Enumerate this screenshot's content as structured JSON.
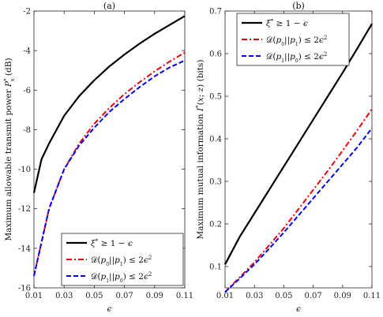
{
  "chart_data": [
    {
      "type": "line",
      "title": "(a)",
      "xlabel": "ϵ",
      "ylabel": "Maximum allowable transmit power P*x (dB)",
      "xlim": [
        0.01,
        0.11
      ],
      "ylim": [
        -16,
        -2
      ],
      "xticks": [
        "0.01",
        "0.03",
        "0.05",
        "0.07",
        "0.09",
        "0.11"
      ],
      "yticks": [
        "-16",
        "-14",
        "-12",
        "-10",
        "-8",
        "-6",
        "-4",
        "-2"
      ],
      "grid": false,
      "legend_position": "bottom-right",
      "x": [
        0.01,
        0.015,
        0.02,
        0.03,
        0.04,
        0.05,
        0.06,
        0.07,
        0.08,
        0.09,
        0.1,
        0.11
      ],
      "series": [
        {
          "name": "ξ* ≥ 1 − ϵ",
          "color": "#000000",
          "dash": "solid",
          "values": [
            -11.2,
            -9.5,
            -8.7,
            -7.3,
            -6.3,
            -5.5,
            -4.8,
            -4.2,
            -3.65,
            -3.15,
            -2.7,
            -2.25
          ]
        },
        {
          "name": "D(p0||p1) ≤ 2ϵ²",
          "color": "#e8000b",
          "dash": "dashdot",
          "values": [
            -15.4,
            -13.7,
            -12.0,
            -10.0,
            -8.7,
            -7.7,
            -6.9,
            -6.2,
            -5.6,
            -5.05,
            -4.55,
            -4.1
          ]
        },
        {
          "name": "D(p1||p0) ≤ 2ϵ²",
          "color": "#0000ff",
          "dash": "dashed",
          "values": [
            -15.4,
            -13.7,
            -12.0,
            -10.0,
            -8.8,
            -7.9,
            -7.1,
            -6.45,
            -5.85,
            -5.3,
            -4.85,
            -4.5
          ]
        }
      ]
    },
    {
      "type": "line",
      "title": "(b)",
      "xlabel": "ϵ",
      "ylabel": "Maximum mutual information I*(x; z) (bits)",
      "xlim": [
        0.01,
        0.11
      ],
      "ylim": [
        0.05,
        0.7
      ],
      "xticks": [
        "0.01",
        "0.03",
        "0.05",
        "0.07",
        "0.09",
        "0.11"
      ],
      "yticks": [
        "0.1",
        "0.2",
        "0.3",
        "0.4",
        "0.5",
        "0.6",
        "0.7"
      ],
      "grid": false,
      "legend_position": "top-left",
      "x": [
        0.01,
        0.02,
        0.03,
        0.04,
        0.05,
        0.06,
        0.07,
        0.08,
        0.09,
        0.1,
        0.11
      ],
      "series": [
        {
          "name": "ξ* ≥ 1 − ϵ",
          "color": "#000000",
          "dash": "solid",
          "values": [
            0.105,
            0.17,
            0.225,
            0.28,
            0.335,
            0.39,
            0.445,
            0.5,
            0.555,
            0.612,
            0.67
          ]
        },
        {
          "name": "D(p0||p1) ≤ 2ϵ²",
          "color": "#e8000b",
          "dash": "dashdot",
          "values": [
            0.04,
            0.075,
            0.11,
            0.15,
            0.19,
            0.235,
            0.28,
            0.325,
            0.372,
            0.42,
            0.47
          ]
        },
        {
          "name": "D(p1||p0) ≤ 2ϵ²",
          "color": "#0000ff",
          "dash": "dashed",
          "values": [
            0.04,
            0.072,
            0.105,
            0.142,
            0.18,
            0.22,
            0.26,
            0.3,
            0.34,
            0.38,
            0.425
          ]
        }
      ]
    }
  ]
}
